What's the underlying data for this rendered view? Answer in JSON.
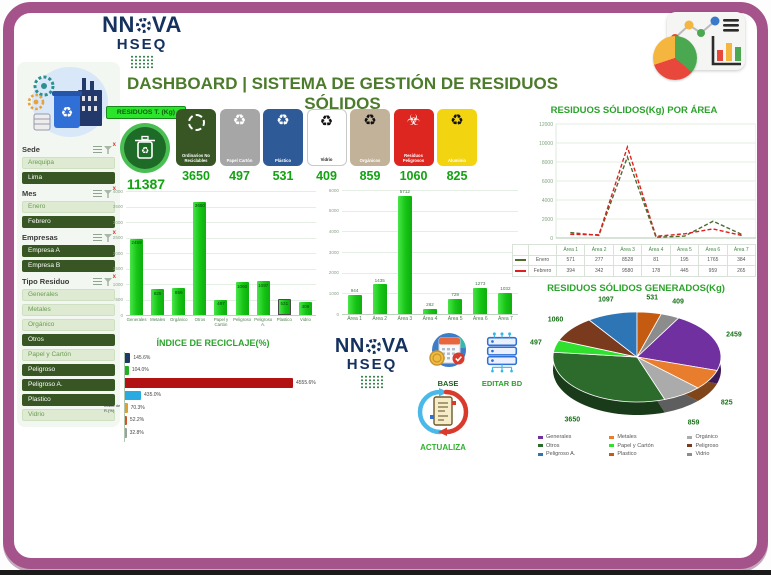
{
  "header": {
    "title": "DASHBOARD | SISTEMA DE GESTIÓN DE RESIDUOS SÓLIDOS",
    "logo": {
      "word": "NNOVA",
      "sub": "HSEQ"
    }
  },
  "sidebar": {
    "slicers": [
      {
        "title": "Sede",
        "items": [
          {
            "label": "Arequipa",
            "selected": false
          },
          {
            "label": "Lima",
            "selected": true
          }
        ]
      },
      {
        "title": "Mes",
        "items": [
          {
            "label": "Enero",
            "selected": false
          },
          {
            "label": "Febrero",
            "selected": true
          }
        ]
      },
      {
        "title": "Empresas",
        "items": [
          {
            "label": "Empresa A",
            "selected": true
          },
          {
            "label": "Empresa B",
            "selected": true
          }
        ]
      },
      {
        "title": "Tipo Residuo",
        "items": [
          {
            "label": "Generales",
            "selected": false
          },
          {
            "label": "Metales",
            "selected": false
          },
          {
            "label": "Orgánico",
            "selected": false
          },
          {
            "label": "Otros",
            "selected": true
          },
          {
            "label": "Papel y Cartón",
            "selected": false
          },
          {
            "label": "Peligroso",
            "selected": true
          },
          {
            "label": "Peligroso A.",
            "selected": true
          },
          {
            "label": "Plastico",
            "selected": true
          },
          {
            "label": "Vidrio",
            "selected": false
          }
        ]
      }
    ]
  },
  "kpi": {
    "total_label": "RESIDUOS T. (Kg)",
    "total_value": "11387",
    "cards": [
      {
        "label": "Ordinarios No Reciclables",
        "value": "3650",
        "bg": "#375623",
        "fg": "#FFFFFF",
        "icon": "circle-arrows-icon",
        "icon_color": "#FFFFFF",
        "bordered": false
      },
      {
        "label": "Papel Cartón",
        "value": "497",
        "bg": "#A6A6A6",
        "fg": "#FFFFFF",
        "icon": "recycle-icon",
        "icon_color": "#FFFFFF",
        "bordered": false
      },
      {
        "label": "Plástico",
        "value": "531",
        "bg": "#2E5B97",
        "fg": "#FFFFFF",
        "icon": "recycle-icon",
        "icon_color": "#FFFFFF",
        "bordered": false
      },
      {
        "label": "Vidrio",
        "value": "409",
        "bg": "#FFFFFF",
        "fg": "#1A1A1A",
        "icon": "recycle-icon",
        "icon_color": "#111111",
        "bordered": true
      },
      {
        "label": "Orgánicos",
        "value": "859",
        "bg": "#C2B299",
        "fg": "#FFFFFF",
        "icon": "recycle-icon",
        "icon_color": "#111111",
        "bordered": false
      },
      {
        "label": "Residuos Peligrosos",
        "value": "1060",
        "bg": "#DE2620",
        "fg": "#FFFFFF",
        "icon": "biohazard-icon",
        "icon_color": "#FFFFFF",
        "bordered": false
      },
      {
        "label": "Aluminio",
        "value": "825",
        "bg": "#F2D411",
        "fg": "#FFFFFF",
        "icon": "recycle-icon",
        "icon_color": "#111111",
        "bordered": false
      }
    ]
  },
  "buttons": {
    "base": "BASE",
    "editar": "EDITAR BD",
    "actualiza": "ACTUALIZA"
  },
  "chart_data": [
    {
      "id": "residuos-por-tipo",
      "type": "bar",
      "title": "",
      "categories": [
        "Generales",
        "Metales",
        "Orgánico",
        "Otros",
        "Papel y Cartón",
        "Peligroso",
        "Peligroso A.",
        "Plastico",
        "Vidrio"
      ],
      "values": [
        2459,
        825,
        859,
        3650,
        497,
        1060,
        1097,
        531,
        409
      ],
      "ylim": [
        0,
        4000
      ],
      "ytick_step": 500,
      "bar_color": "#1EC71E",
      "highlighted_category": "Plastico",
      "value_labels": "inside"
    },
    {
      "id": "residuos-por-area",
      "type": "bar",
      "title": "",
      "categories": [
        "Área 1",
        "Área 2",
        "Área 3",
        "Área 4",
        "Área 5",
        "Área 6",
        "Área 7"
      ],
      "values": [
        944,
        1435,
        5712,
        262,
        729,
        1273,
        1032
      ],
      "ylim": [
        0,
        6000
      ],
      "ytick_step": 1000,
      "bar_color": "#1EC71E",
      "value_labels": "above"
    },
    {
      "id": "residuos-por-area-mes",
      "type": "line",
      "title": "RESIDUOS SÓLIDOS(Kg) POR ÁREA",
      "categories": [
        "Área 1",
        "Área 2",
        "Área 3",
        "Área 4",
        "Área 5",
        "Área 6",
        "Área 7"
      ],
      "ylim": [
        0,
        12000
      ],
      "ytick_step": 2000,
      "data_table": true,
      "series": [
        {
          "name": "Enero",
          "color": "#4E6B30",
          "dashed": true,
          "values": [
            571,
            277,
            8528,
            81,
            195,
            1765,
            384
          ]
        },
        {
          "name": "Febrero",
          "color": "#E02020",
          "dashed": true,
          "values": [
            394,
            342,
            9580,
            178,
            445,
            959,
            265
          ]
        }
      ]
    },
    {
      "id": "residuos-generados",
      "type": "pie",
      "title": "RESIDUOS SÓLIDOS GENERADOS(Kg)",
      "categories": [
        "Generales",
        "Metales",
        "Orgánico",
        "Otros",
        "Papel y Cartón",
        "Peligroso",
        "Peligroso A.",
        "Plastico",
        "Vidrio"
      ],
      "values": [
        2459,
        825,
        859,
        3650,
        497,
        1060,
        1097,
        531,
        409
      ],
      "colors": [
        "#7030A0",
        "#E87D2E",
        "#ABABAB",
        "#2D6B2D",
        "#2FE02F",
        "#7A3A1D",
        "#2E75B6",
        "#C55A11",
        "#8C8C8C"
      ],
      "start_angle_deg": 29.7,
      "legend_position": "bottom"
    },
    {
      "id": "indice-reciclaje",
      "type": "bar",
      "orientation": "horizontal",
      "title": "ÍNDICE DE RECICLAJE(%)",
      "axis_label": "Indice de R.(%)",
      "labels": [
        "145.6%",
        "104.0%",
        "4555.6%",
        "435.0%",
        "70.3%",
        "52.2%",
        "32.8%"
      ],
      "values": [
        145.6,
        104.0,
        4555.6,
        435.0,
        70.3,
        52.2,
        32.8
      ],
      "colors": [
        "#1F3864",
        "#21B021",
        "#B31212",
        "#29ABE2",
        "#E0A030",
        "#D2522B",
        "#9E9E9E"
      ],
      "xmax": 4555.6
    }
  ]
}
